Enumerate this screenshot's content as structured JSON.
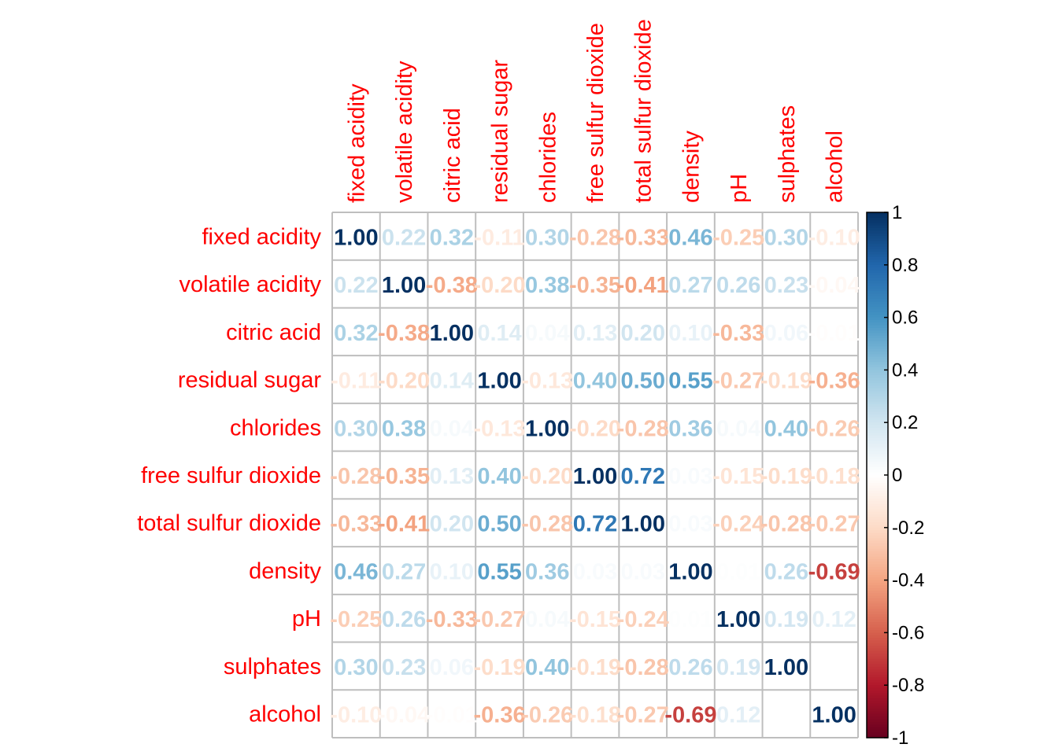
{
  "chart_data": {
    "type": "heatmap",
    "title": "",
    "variables": [
      "fixed acidity",
      "volatile acidity",
      "citric acid",
      "residual sugar",
      "chlorides",
      "free sulfur dioxide",
      "total sulfur dioxide",
      "density",
      "pH",
      "sulphates",
      "alcohol"
    ],
    "matrix": [
      [
        1.0,
        0.22,
        0.32,
        -0.11,
        0.3,
        -0.28,
        -0.33,
        0.46,
        -0.25,
        0.3,
        -0.1
      ],
      [
        0.22,
        1.0,
        -0.38,
        -0.2,
        0.38,
        -0.35,
        -0.41,
        0.27,
        0.26,
        0.23,
        -0.04
      ],
      [
        0.32,
        -0.38,
        1.0,
        0.14,
        0.04,
        0.13,
        0.2,
        0.1,
        -0.33,
        0.06,
        -0.01
      ],
      [
        -0.11,
        -0.2,
        0.14,
        1.0,
        -0.13,
        0.4,
        0.5,
        0.55,
        -0.27,
        -0.19,
        -0.36
      ],
      [
        0.3,
        0.38,
        0.04,
        -0.13,
        1.0,
        -0.2,
        -0.28,
        0.36,
        0.04,
        0.4,
        -0.26
      ],
      [
        -0.28,
        -0.35,
        0.13,
        0.4,
        -0.2,
        1.0,
        0.72,
        0.03,
        -0.15,
        -0.19,
        -0.18
      ],
      [
        -0.33,
        -0.41,
        0.2,
        0.5,
        -0.28,
        0.72,
        1.0,
        0.03,
        -0.24,
        -0.28,
        -0.27
      ],
      [
        0.46,
        0.27,
        0.1,
        0.55,
        0.36,
        0.03,
        0.03,
        1.0,
        0.01,
        0.26,
        -0.69
      ],
      [
        -0.25,
        0.26,
        -0.33,
        -0.27,
        0.04,
        -0.15,
        -0.24,
        0.01,
        1.0,
        0.19,
        0.12
      ],
      [
        0.3,
        0.23,
        0.06,
        -0.19,
        0.4,
        -0.19,
        -0.28,
        0.26,
        0.19,
        1.0,
        -0.0
      ],
      [
        -0.1,
        -0.04,
        -0.01,
        -0.36,
        -0.26,
        -0.18,
        -0.27,
        -0.69,
        0.12,
        -0.0,
        1.0
      ]
    ],
    "colorbar": {
      "range": [
        -1,
        1
      ],
      "ticks": [
        "1",
        "0.8",
        "0.6",
        "0.4",
        "0.2",
        "0",
        "-0.2",
        "-0.4",
        "-0.6",
        "-0.8",
        "-1"
      ]
    },
    "palette": [
      "#67001F",
      "#B2182B",
      "#D6604D",
      "#F4A582",
      "#FDDBC7",
      "#FFFFFF",
      "#D1E5F0",
      "#92C5DE",
      "#4393C3",
      "#2166AC",
      "#053061"
    ],
    "label_color": "#FF0000",
    "grid_color": "#BEBEBE"
  }
}
